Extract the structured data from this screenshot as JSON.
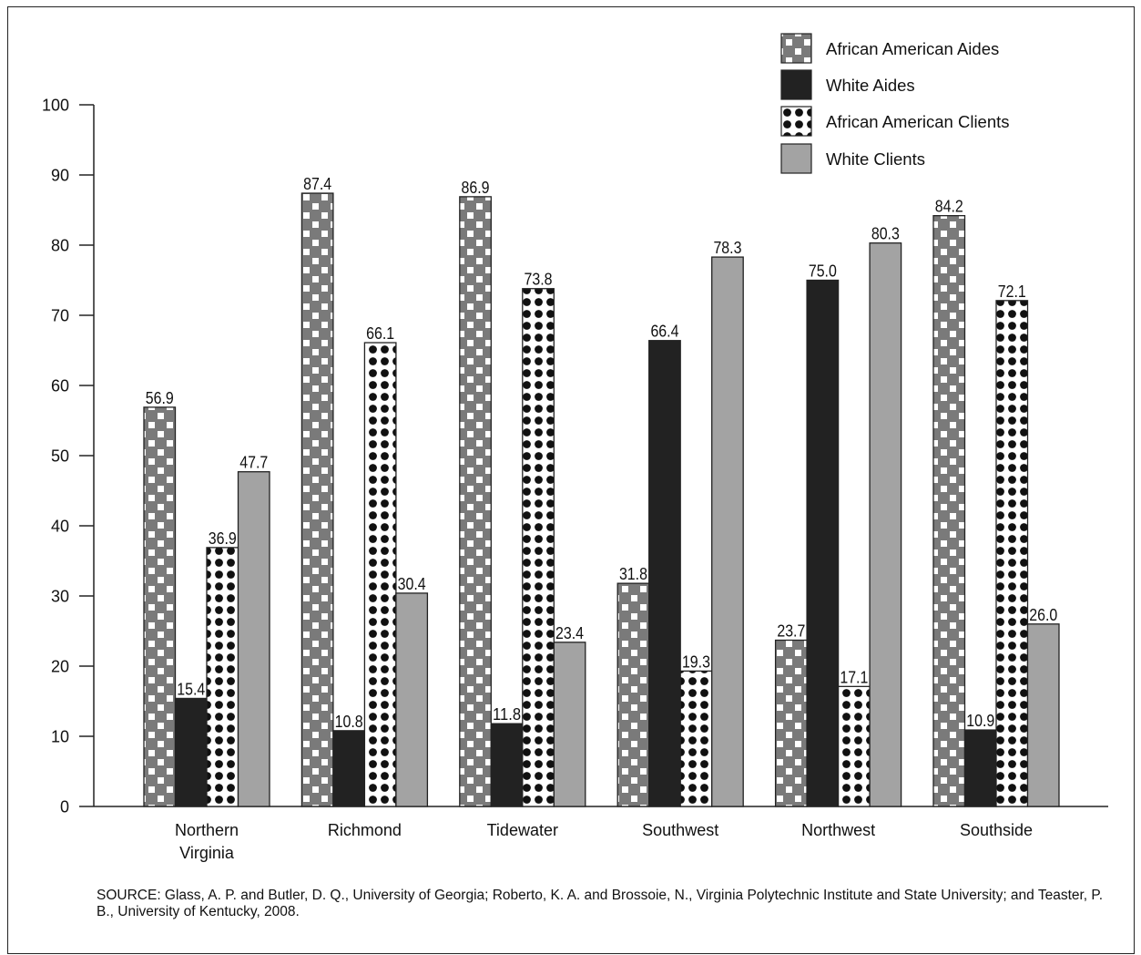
{
  "chart_data": {
    "type": "bar",
    "title": "",
    "xlabel": "",
    "ylabel": "",
    "ylim": [
      0,
      100
    ],
    "yticks": [
      0,
      10,
      20,
      30,
      40,
      50,
      60,
      70,
      80,
      90,
      100
    ],
    "categories": [
      "Northern\nVirginia",
      "Richmond",
      "Tidewater",
      "Southwest",
      "Northwest",
      "Southside"
    ],
    "series": [
      {
        "name": "African American Aides",
        "values": [
          56.9,
          87.4,
          86.9,
          31.8,
          23.7,
          84.2
        ],
        "labels": [
          "56.9",
          "87.4",
          "86.9",
          "31.8",
          "23.7",
          "84.2"
        ],
        "pattern": "checker"
      },
      {
        "name": "White Aides",
        "values": [
          15.4,
          10.8,
          11.8,
          66.4,
          75.0,
          10.9
        ],
        "labels": [
          "15.4",
          "10.8",
          "11.8",
          "66.4",
          "75.0",
          "10.9"
        ],
        "pattern": "solid-black"
      },
      {
        "name": "African American Clients",
        "values": [
          36.9,
          66.1,
          73.8,
          19.3,
          17.1,
          72.1
        ],
        "labels": [
          "36.9",
          "66.1",
          "73.8",
          "19.3",
          "17.1",
          "72.1"
        ],
        "pattern": "dots"
      },
      {
        "name": "White Clients",
        "values": [
          47.7,
          30.4,
          23.4,
          78.3,
          80.3,
          26.0
        ],
        "labels": [
          "47.7",
          "30.4",
          "23.4",
          "78.3",
          "80.3",
          "26.0"
        ],
        "pattern": "solid-gray"
      }
    ],
    "legend_position": "top-right",
    "grid": false,
    "colors": {
      "checker_dark": "#7a7a7a",
      "checker_light": "#ffffff",
      "black": "#222222",
      "gray": "#a3a3a3",
      "axis": "#222222"
    }
  },
  "source_note": "SOURCE: Glass, A. P. and Butler, D. Q., University of Georgia; Roberto, K. A. and Brossoie, N., Virginia Polytechnic Institute and State University; and Teaster, P. B., University of Kentucky, 2008."
}
